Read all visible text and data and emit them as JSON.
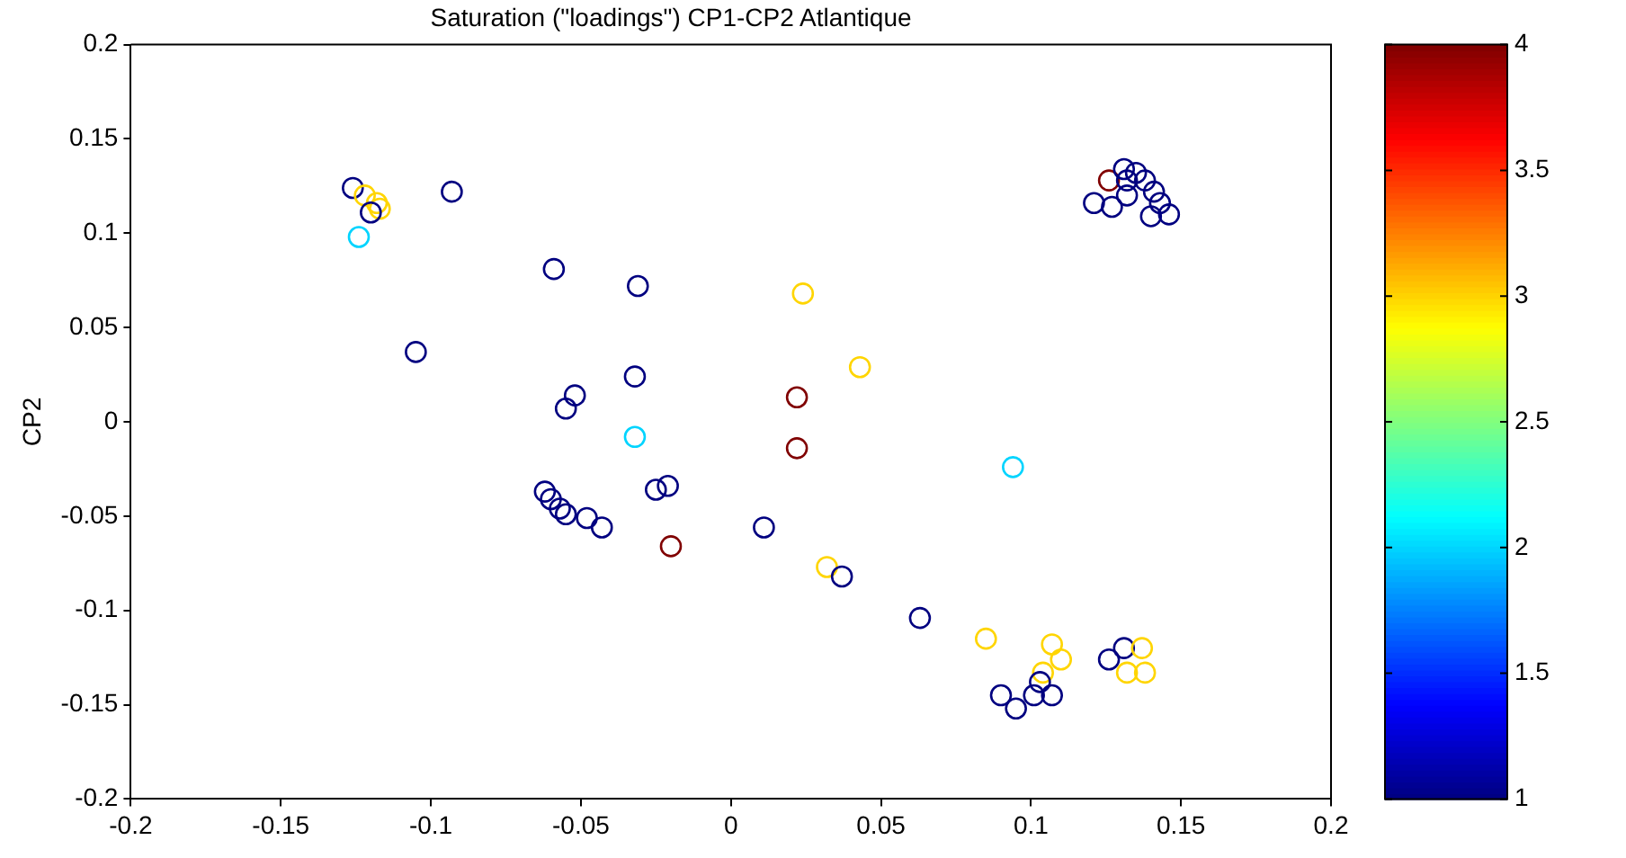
{
  "chart_data": {
    "type": "scatter",
    "title": "Saturation (\"loadings\") CP1-CP2 Atlantique",
    "ylabel": "CP2",
    "xlim": [
      -0.2,
      0.2
    ],
    "xticks": [
      -0.2,
      -0.15,
      -0.1,
      -0.05,
      0,
      0.05,
      0.1,
      0.15,
      0.2
    ],
    "ylim": [
      -0.2,
      0.2
    ],
    "yticks": [
      -0.2,
      -0.15,
      -0.1,
      -0.05,
      0,
      0.05,
      0.1,
      0.15,
      0.2
    ],
    "clim": [
      1,
      4
    ],
    "cticks": [
      1,
      1.5,
      2,
      2.5,
      3,
      3.5,
      4
    ],
    "grid": false,
    "legend": false,
    "marker": "circle",
    "series": [
      {
        "x": [
          -0.126,
          -0.122,
          -0.118,
          -0.117,
          -0.12,
          -0.124,
          -0.093,
          -0.059,
          -0.031,
          -0.105,
          -0.032,
          -0.052,
          -0.055,
          -0.032,
          -0.062,
          -0.06,
          -0.057,
          -0.055,
          -0.048,
          -0.043,
          -0.025,
          -0.021,
          -0.02,
          0.011,
          0.024,
          0.043,
          0.022,
          0.022,
          0.094,
          0.032,
          0.037,
          0.063,
          0.085,
          0.107,
          0.11,
          0.104,
          0.09,
          0.095,
          0.101,
          0.107,
          0.103,
          0.126,
          0.131,
          0.137,
          0.132,
          0.138,
          0.126,
          0.121,
          0.127,
          0.132,
          0.135,
          0.138,
          0.141,
          0.143,
          0.146,
          0.14,
          0.132,
          0.131
        ],
        "values": [
          0.124,
          0.12,
          0.116,
          0.113,
          0.111,
          0.098,
          0.122,
          0.081,
          0.072,
          0.037,
          0.024,
          0.014,
          0.007,
          -0.008,
          -0.037,
          -0.041,
          -0.046,
          -0.049,
          -0.051,
          -0.056,
          -0.036,
          -0.034,
          -0.066,
          -0.056,
          0.068,
          0.029,
          0.013,
          -0.014,
          -0.024,
          -0.077,
          -0.082,
          -0.104,
          -0.115,
          -0.118,
          -0.126,
          -0.133,
          -0.145,
          -0.152,
          -0.145,
          -0.145,
          -0.138,
          -0.126,
          -0.12,
          -0.12,
          -0.133,
          -0.133,
          0.128,
          0.116,
          0.114,
          0.12,
          0.132,
          0.128,
          0.122,
          0.116,
          0.11,
          0.109,
          0.128,
          0.134
        ],
        "cvalues": [
          1,
          3,
          3,
          3,
          1,
          2,
          1,
          1,
          1,
          1,
          1,
          1,
          1,
          2,
          1,
          1,
          1,
          1,
          1,
          1,
          1,
          1,
          4,
          1,
          3,
          3,
          4,
          4,
          2,
          3,
          1,
          1,
          3,
          3,
          3,
          3,
          1,
          1,
          1,
          1,
          1,
          1,
          1,
          3,
          3,
          3,
          4,
          1,
          1,
          1,
          1,
          1,
          1,
          1,
          1,
          1,
          1,
          1
        ]
      }
    ]
  }
}
